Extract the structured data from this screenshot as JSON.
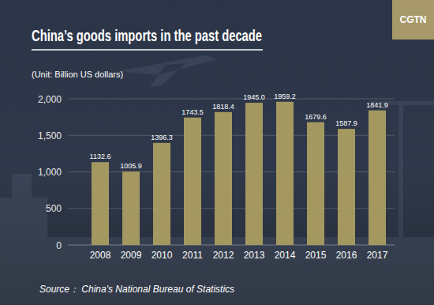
{
  "chart_data": {
    "type": "bar",
    "title": "China’s goods imports in the past decade",
    "y_label": "(Unit: Billion US dollars)",
    "source": "Source： China's National Bureau of Statistics",
    "logo": "CGTN",
    "categories": [
      "2008",
      "2009",
      "2010",
      "2011",
      "2012",
      "2013",
      "2014",
      "2015",
      "2016",
      "2017"
    ],
    "values": [
      1132.6,
      1005.9,
      1396.3,
      1743.5,
      1818.4,
      1945.0,
      1959.2,
      1679.6,
      1587.9,
      1841.9
    ],
    "value_labels": [
      "1132.6",
      "1005.9",
      "1396.3",
      "1743.5",
      "1818.4",
      "1945.0",
      "1959.2",
      "1679.6",
      "1587.9",
      "1841.9"
    ],
    "color": "#ab9d62",
    "ylim": [
      0,
      2000
    ],
    "yticks": [
      0,
      500,
      {
        "value": 1000,
        "label": "1,000"
      },
      {
        "value": 1500,
        "label": "1,500"
      },
      {
        "value": 2000,
        "label": "2,000"
      }
    ],
    "grid": true,
    "data_labels": true
  }
}
